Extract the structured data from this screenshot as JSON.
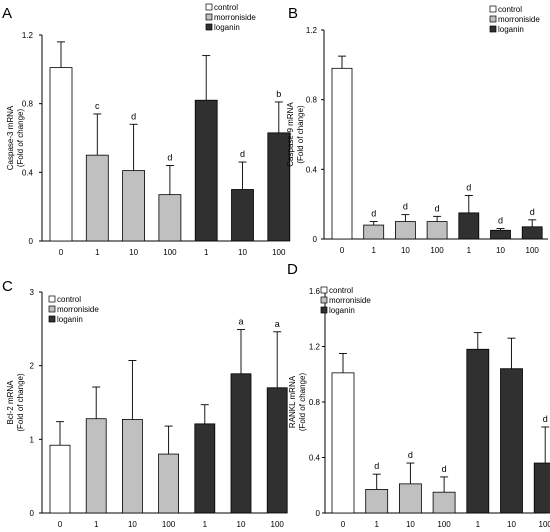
{
  "colors": {
    "control": "#ffffff",
    "morroniside": "#c0c0c0",
    "loganin": "#303030",
    "stroke": "#000000"
  },
  "chart_data": [
    {
      "panel": "A",
      "type": "bar",
      "ylabel_lines": [
        "Caspase-3 mRNA",
        "(Fold of change)"
      ],
      "ylim": [
        0,
        1.2
      ],
      "yticks": [
        "0",
        "0.4",
        "0.8",
        "1.2"
      ],
      "categories": [
        "0",
        "1",
        "10",
        "100",
        "1",
        "10",
        "100"
      ],
      "groups": [
        "control",
        "morroniside",
        "morroniside",
        "morroniside",
        "loganin",
        "loganin",
        "loganin"
      ],
      "values": [
        1.01,
        0.5,
        0.41,
        0.27,
        0.82,
        0.3,
        0.63
      ],
      "errors": [
        0.15,
        0.24,
        0.27,
        0.17,
        0.26,
        0.16,
        0.18
      ],
      "annotations": [
        "",
        "c",
        "d",
        "d",
        "",
        "d",
        "b"
      ],
      "legend": [
        "control",
        "morroniside",
        "loganin"
      ],
      "legend_position": "top-right"
    },
    {
      "panel": "B",
      "type": "bar",
      "ylabel_lines": [
        "Caspase-9 mRNA",
        "(Fold of change)"
      ],
      "ylim": [
        0,
        1.2
      ],
      "yticks": [
        "0",
        "0.4",
        "0.8",
        "1.2"
      ],
      "categories": [
        "0",
        "1",
        "10",
        "100",
        "1",
        "10",
        "100"
      ],
      "groups": [
        "control",
        "morroniside",
        "morroniside",
        "morroniside",
        "loganin",
        "loganin",
        "loganin"
      ],
      "values": [
        0.98,
        0.08,
        0.1,
        0.1,
        0.15,
        0.05,
        0.07
      ],
      "errors": [
        0.07,
        0.02,
        0.04,
        0.03,
        0.1,
        0.01,
        0.04
      ],
      "annotations": [
        "",
        "d",
        "d",
        "d",
        "d",
        "d",
        "d"
      ],
      "legend": [
        "control",
        "morroniside",
        "loganin"
      ],
      "legend_position": "top-right"
    },
    {
      "panel": "C",
      "type": "bar",
      "ylabel_lines": [
        "Bcl-2 mRNA",
        "(Fold of change)"
      ],
      "ylim": [
        0,
        3
      ],
      "yticks": [
        "0",
        "1",
        "2",
        "3"
      ],
      "categories": [
        "0",
        "1",
        "10",
        "100",
        "1",
        "10",
        "100"
      ],
      "groups": [
        "control",
        "morroniside",
        "morroniside",
        "morroniside",
        "loganin",
        "loganin",
        "loganin"
      ],
      "values": [
        0.92,
        1.28,
        1.27,
        0.8,
        1.21,
        1.89,
        1.7
      ],
      "errors": [
        0.32,
        0.43,
        0.8,
        0.38,
        0.26,
        0.6,
        0.76
      ],
      "annotations": [
        "",
        "",
        "",
        "",
        "",
        "a",
        "a"
      ],
      "legend": [
        "control",
        "morroniside",
        "loganin"
      ],
      "legend_position": "top-left"
    },
    {
      "panel": "D",
      "type": "bar",
      "ylabel_lines": [
        "RANKL mRNA",
        "(Fold of change)"
      ],
      "ylim": [
        0,
        1.6
      ],
      "yticks": [
        "0",
        "0.4",
        "0.8",
        "1.2",
        "1.6"
      ],
      "categories": [
        "0",
        "1",
        "10",
        "100",
        "1",
        "10",
        "100"
      ],
      "groups": [
        "control",
        "morroniside",
        "morroniside",
        "morroniside",
        "loganin",
        "loganin",
        "loganin"
      ],
      "values": [
        1.01,
        0.17,
        0.21,
        0.15,
        1.18,
        1.04,
        0.36
      ],
      "errors": [
        0.14,
        0.11,
        0.15,
        0.11,
        0.12,
        0.22,
        0.26
      ],
      "annotations": [
        "",
        "d",
        "d",
        "d",
        "",
        "",
        "d"
      ],
      "legend": [
        "control",
        "morroniside",
        "loganin"
      ],
      "legend_position": "top-left"
    }
  ]
}
